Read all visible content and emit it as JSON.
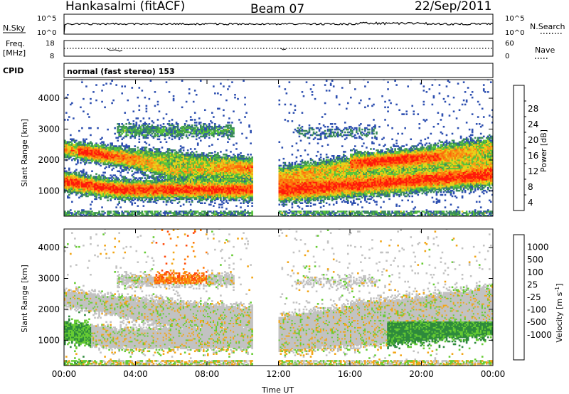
{
  "header": {
    "site": "Hankasalmi (fitACF)",
    "beam": "Beam 07",
    "date": "22/Sep/2011"
  },
  "top_panels": {
    "nsky_label": "N.Sky",
    "nsky_ticks": [
      "10^5",
      "10^0"
    ],
    "nsearch_label": "N.Search",
    "nsearch_ticks": [
      "10^5",
      "10^0"
    ],
    "freq_label_1": "Freq.",
    "freq_label_2": "[MHz]",
    "freq_ticks": [
      "18",
      "8"
    ],
    "nave_label": "Nave",
    "nave_ticks": [
      "60",
      "0"
    ],
    "cpid_label": "CPID",
    "cpid_text": "normal (fast stereo) 153"
  },
  "colors": {
    "power_scale": [
      "#1515ff",
      "#2d4fb0",
      "#3b8c5a",
      "#58c43a",
      "#e8d21a",
      "#f59a16",
      "#ff6a0a",
      "#ff1a0a"
    ],
    "velocity_scale": [
      "#1e39b5",
      "#2f6e8c",
      "#2e8a3c",
      "#66cc33",
      "#c2c2c2",
      "#c2c2c2",
      "#f2a516",
      "#ff7a0a",
      "#ff4a0a",
      "#ff0a0a"
    ]
  },
  "chart_data": [
    {
      "type": "heatmap",
      "title": "",
      "xlabel": "Time UT",
      "ylabel": "Slant Range [km]",
      "x_ticks": [
        "00:00",
        "04:00",
        "08:00",
        "12:00",
        "16:00",
        "20:00",
        "00:00"
      ],
      "xlim": [
        0,
        24
      ],
      "ylim": [
        180,
        4600
      ],
      "y_ticks": [
        1000,
        2000,
        3000,
        4000
      ],
      "colorbar_label": "Power [dB]",
      "colorbar_ticks": [
        "4",
        "8",
        "12",
        "16",
        "20",
        "24",
        "28"
      ],
      "scale_range": [
        0,
        32
      ],
      "data_gap_hours": [
        10.6,
        12.0
      ]
    },
    {
      "type": "heatmap",
      "title": "",
      "xlabel": "Time UT",
      "ylabel": "Slant Range [km]",
      "x_ticks": [
        "00:00",
        "04:00",
        "08:00",
        "12:00",
        "16:00",
        "20:00",
        "00:00"
      ],
      "xlim": [
        0,
        24
      ],
      "ylim": [
        180,
        4600
      ],
      "y_ticks": [
        1000,
        2000,
        3000,
        4000
      ],
      "colorbar_label": "Velocity [m s^-1]",
      "colorbar_ticks": [
        "1000",
        "500",
        "100",
        "25",
        "-25",
        "-100",
        "-500",
        "-1000"
      ],
      "data_gap_hours": [
        10.6,
        12.0
      ]
    }
  ],
  "axis_label": "Time UT"
}
